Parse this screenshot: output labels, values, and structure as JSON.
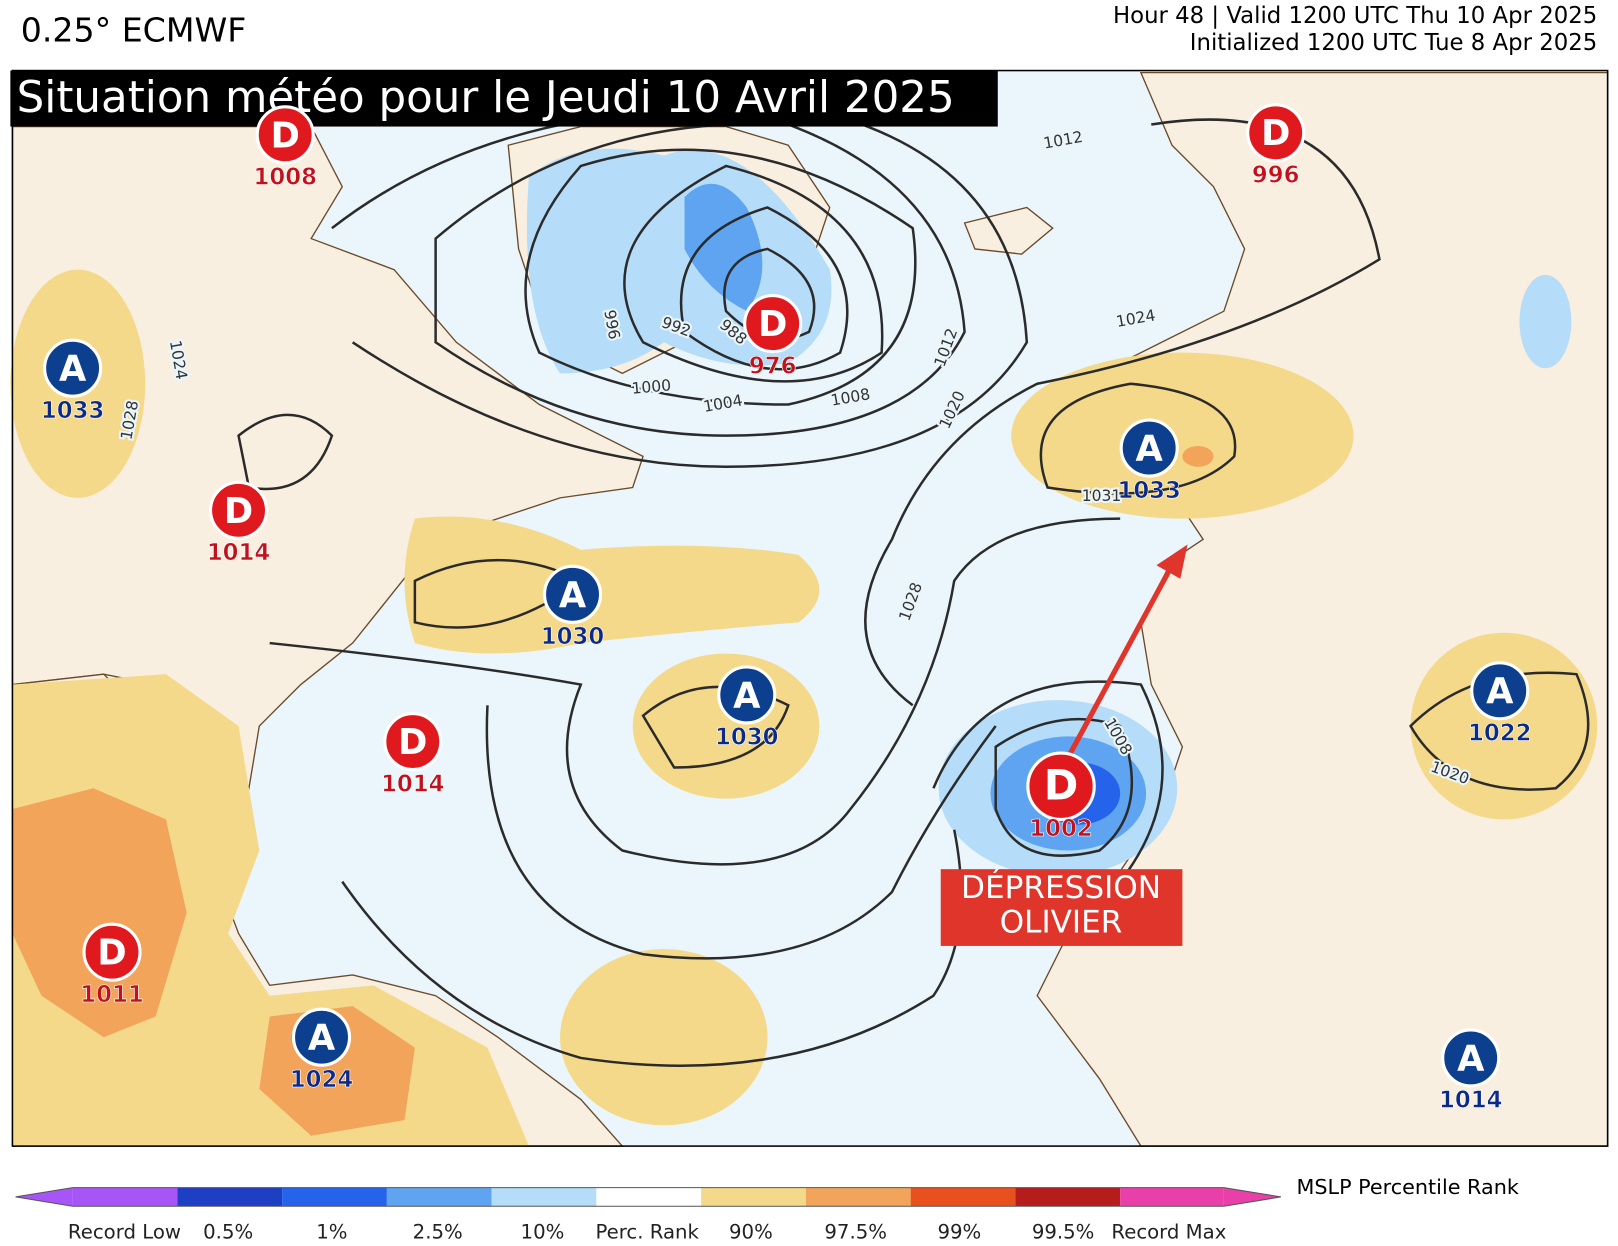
{
  "header": {
    "model": "0.25° ECMWF",
    "valid": "Hour 48 | Valid 1200 UTC Thu 10 Apr 2025",
    "initialized": "Initialized 1200 UTC Tue 8 Apr 2025"
  },
  "title": "Situation météo pour le Jeudi 10 Avril 2025",
  "centers": [
    {
      "symbol": "D",
      "pressure": 1008
    },
    {
      "symbol": "D",
      "pressure": 996
    },
    {
      "symbol": "A",
      "pressure": 1033
    },
    {
      "symbol": "D",
      "pressure": 976
    },
    {
      "symbol": "D",
      "pressure": 1014
    },
    {
      "symbol": "A",
      "pressure": 1033
    },
    {
      "symbol": "A",
      "pressure": 1030
    },
    {
      "symbol": "A",
      "pressure": 1030
    },
    {
      "symbol": "D",
      "pressure": 1014
    },
    {
      "symbol": "A",
      "pressure": 1022
    },
    {
      "symbol": "D",
      "pressure": 1002
    },
    {
      "symbol": "D",
      "pressure": 1011
    },
    {
      "symbol": "A",
      "pressure": 1024
    },
    {
      "symbol": "A",
      "pressure": 1014
    }
  ],
  "isobar_labels": [
    1012,
    992,
    988,
    996,
    1000,
    1004,
    1008,
    1012,
    1020,
    1024,
    1028,
    1008,
    1020,
    1024,
    1028,
    1031
  ],
  "annotation": [
    "DÉPRESSION",
    "OLIVIER"
  ],
  "legend": {
    "title": "MSLP Percentile Rank",
    "labels": [
      "Record Low",
      "0.5%",
      "1%",
      "2.5%",
      "10%",
      "Perc. Rank",
      "90%",
      "97.5%",
      "99%",
      "99.5%",
      "Record Max"
    ]
  }
}
